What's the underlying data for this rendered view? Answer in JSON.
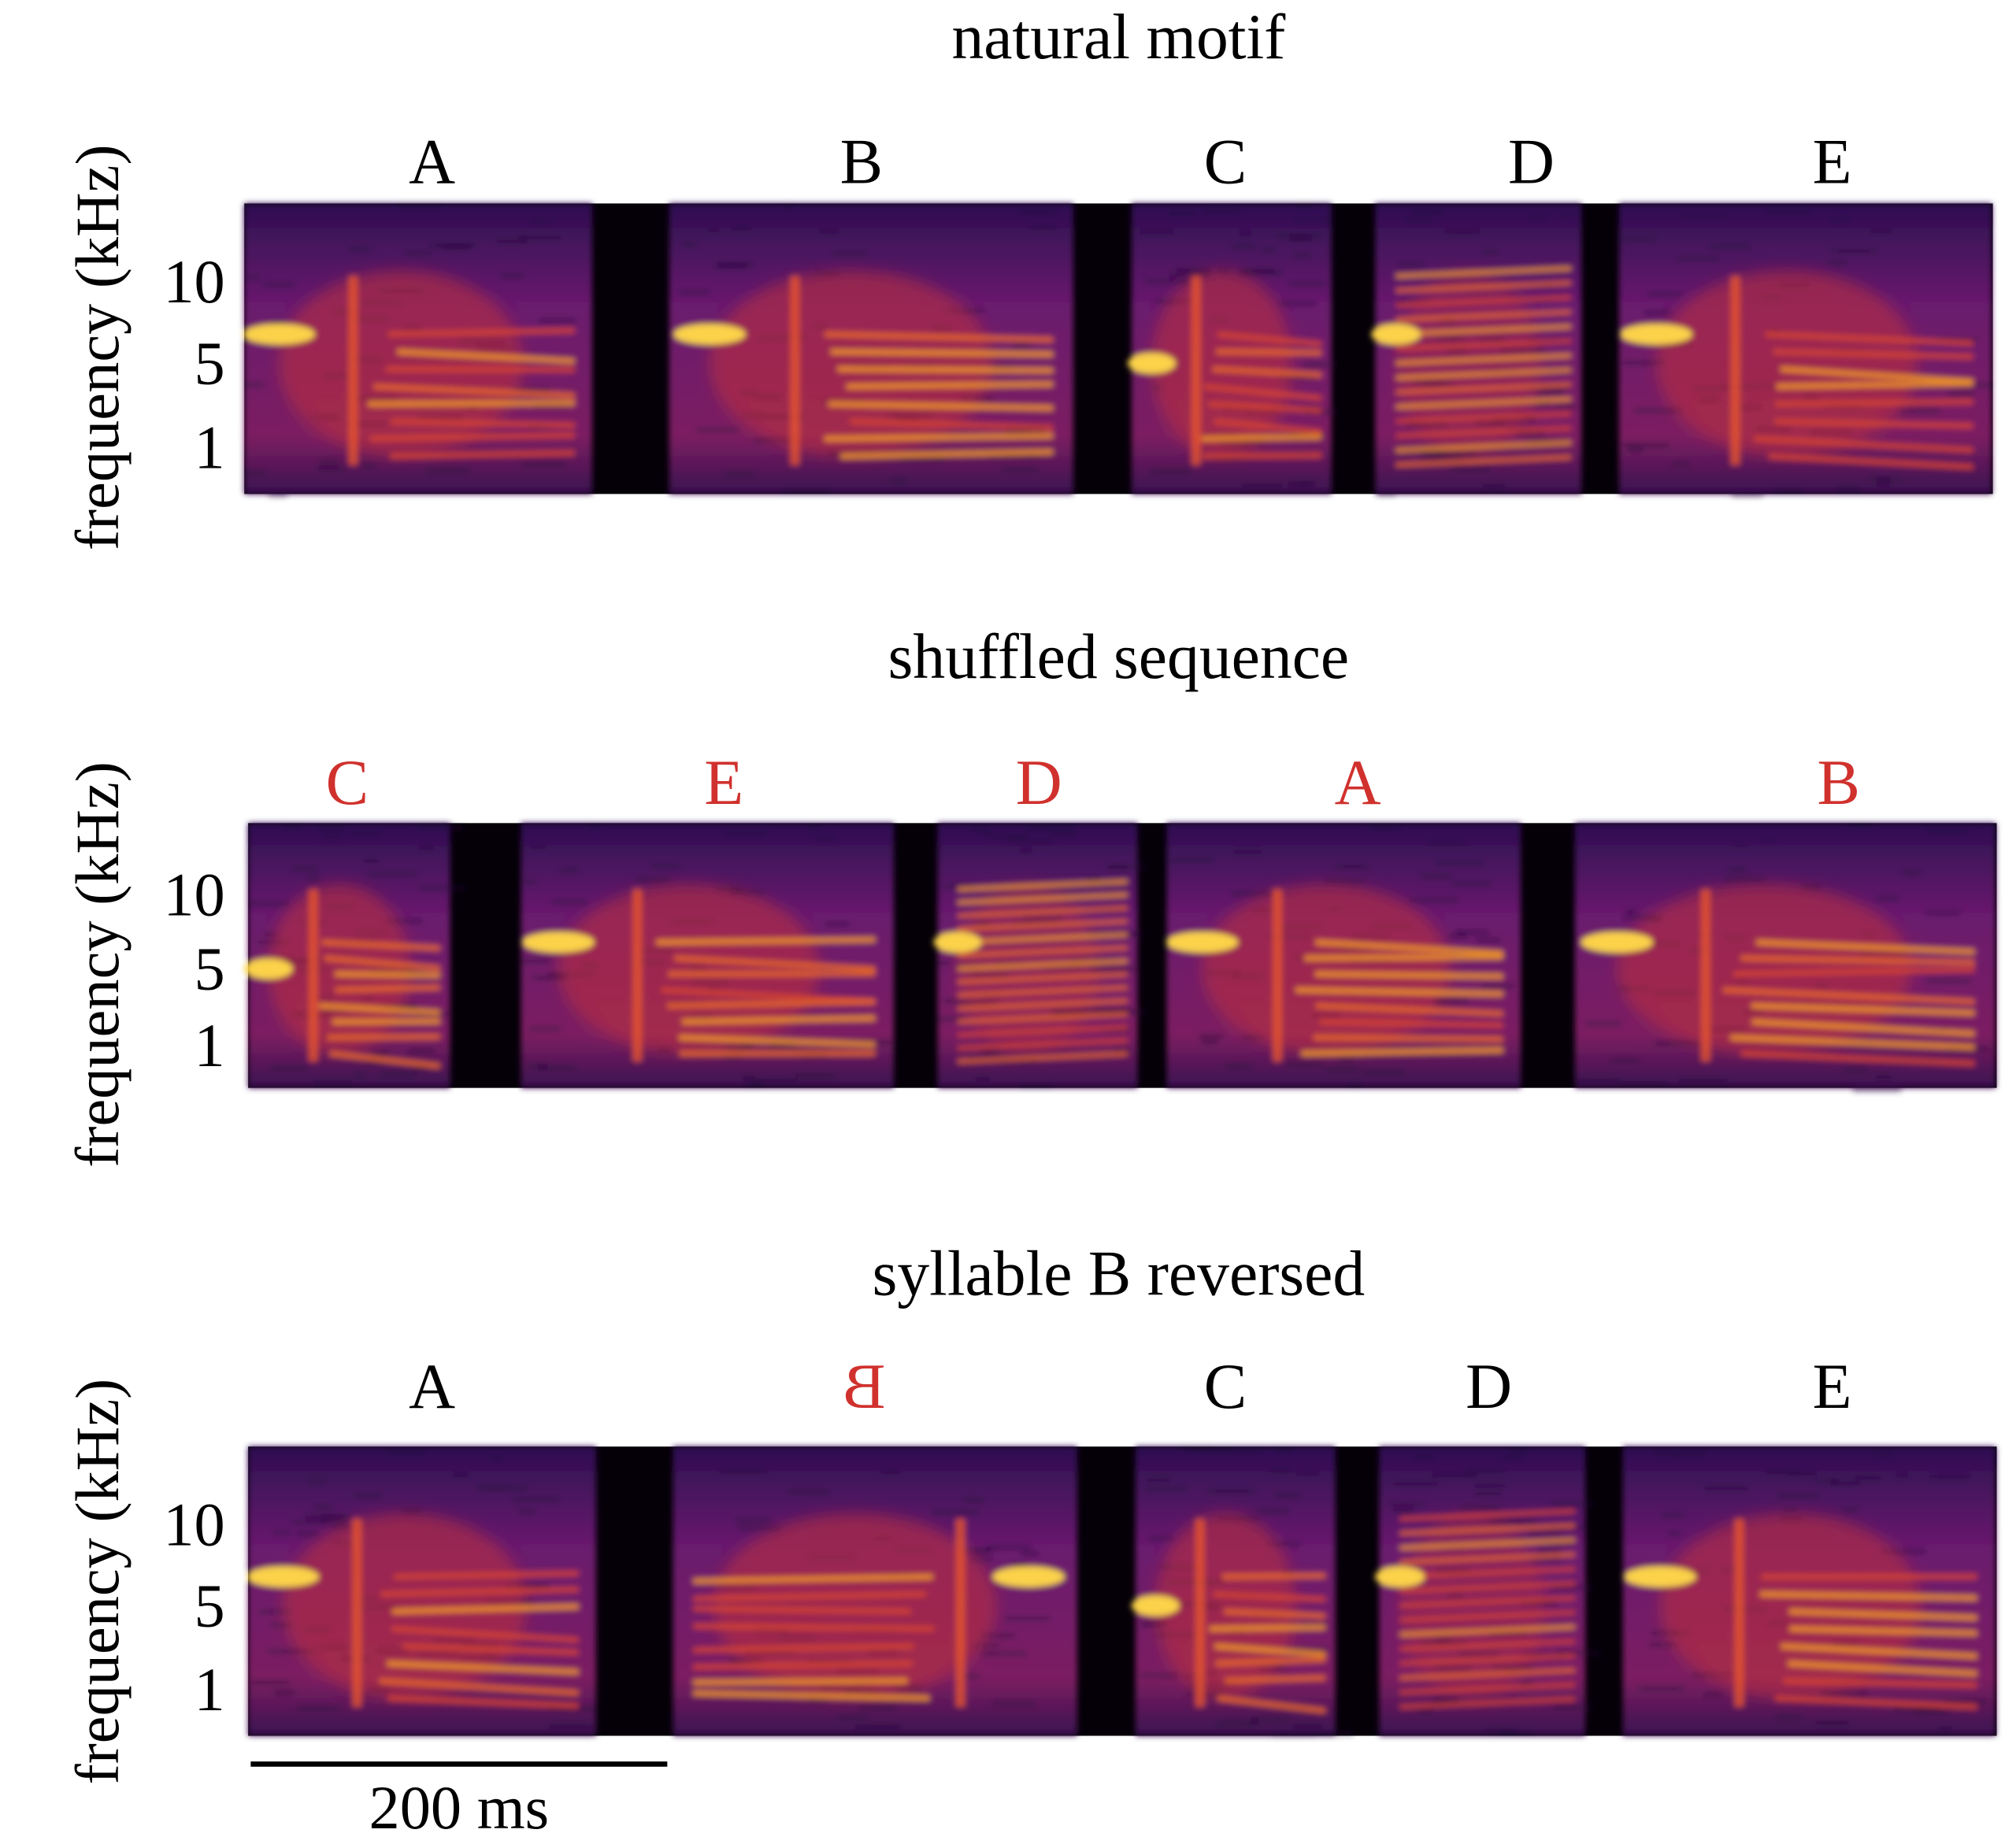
{
  "chart_data": [
    {
      "type": "heatmap",
      "title": "natural motif",
      "ylabel": "frequency (kHz)",
      "yticks": [
        "10",
        "5",
        "1"
      ],
      "syllables": [
        {
          "label": "A",
          "onset_ms": 0,
          "offset_ms": 167,
          "reversed": false,
          "highlight": false
        },
        {
          "label": "B",
          "onset_ms": 204,
          "offset_ms": 398,
          "reversed": false,
          "highlight": false
        },
        {
          "label": "C",
          "onset_ms": 426,
          "offset_ms": 522,
          "reversed": false,
          "highlight": false
        },
        {
          "label": "D",
          "onset_ms": 543,
          "offset_ms": 642,
          "reversed": false,
          "highlight": false
        },
        {
          "label": "E",
          "onset_ms": 660,
          "offset_ms": 839,
          "reversed": false,
          "highlight": false
        }
      ]
    },
    {
      "type": "heatmap",
      "title": "shuffled sequence",
      "ylabel": "frequency (kHz)",
      "yticks": [
        "10",
        "5",
        "1"
      ],
      "syllables": [
        {
          "label": "C",
          "onset_ms": 0,
          "offset_ms": 97,
          "reversed": false,
          "highlight": true
        },
        {
          "label": "E",
          "onset_ms": 131,
          "offset_ms": 310,
          "reversed": false,
          "highlight": true
        },
        {
          "label": "D",
          "onset_ms": 331,
          "offset_ms": 427,
          "reversed": false,
          "highlight": true
        },
        {
          "label": "A",
          "onset_ms": 441,
          "offset_ms": 611,
          "reversed": false,
          "highlight": true
        },
        {
          "label": "B",
          "onset_ms": 637,
          "offset_ms": 839,
          "reversed": false,
          "highlight": true
        }
      ]
    },
    {
      "type": "heatmap",
      "title": "syllable B reversed",
      "ylabel": "frequency (kHz)",
      "yticks": [
        "10",
        "5",
        "1"
      ],
      "syllables": [
        {
          "label": "A",
          "onset_ms": 0,
          "offset_ms": 167,
          "reversed": false,
          "highlight": false
        },
        {
          "label": "B",
          "onset_ms": 204,
          "offset_ms": 398,
          "reversed": true,
          "highlight": true
        },
        {
          "label": "C",
          "onset_ms": 426,
          "offset_ms": 522,
          "reversed": false,
          "highlight": false
        },
        {
          "label": "D",
          "onset_ms": 543,
          "offset_ms": 642,
          "reversed": false,
          "highlight": false
        },
        {
          "label": "E",
          "onset_ms": 660,
          "offset_ms": 839,
          "reversed": false,
          "highlight": false
        }
      ]
    }
  ],
  "scale_bar": {
    "label": "200 ms",
    "value_ms": 200
  },
  "colors": {
    "highlight_label": "#d0312d",
    "normal_label": "#000000",
    "colormap": "inferno-like",
    "silence": "#050008",
    "background_noise": "#2b0f4c"
  }
}
